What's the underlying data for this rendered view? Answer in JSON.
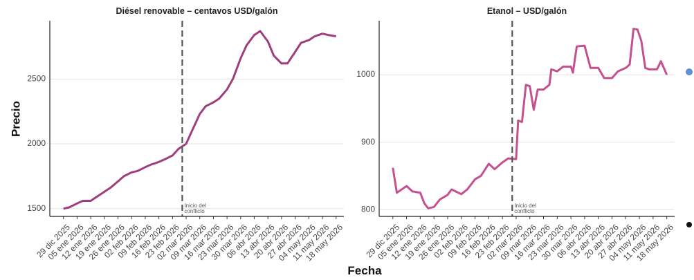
{
  "chart_data": [
    {
      "type": "line",
      "title": "Diésel renovable – centavos USD/galón",
      "ylabel": "Precio",
      "xlabel": "Fecha",
      "x": [
        "2025-12-29",
        "2026-01-01",
        "2026-01-05",
        "2026-01-08",
        "2026-01-12",
        "2026-01-15",
        "2026-01-19",
        "2026-01-22",
        "2026-01-26",
        "2026-01-29",
        "2026-02-02",
        "2026-02-05",
        "2026-02-09",
        "2026-02-12",
        "2026-02-16",
        "2026-02-19",
        "2026-02-23",
        "2026-02-26",
        "2026-03-02",
        "2026-03-05",
        "2026-03-09",
        "2026-03-12",
        "2026-03-16",
        "2026-03-19",
        "2026-03-23",
        "2026-03-26",
        "2026-03-30",
        "2026-04-02",
        "2026-04-06",
        "2026-04-09",
        "2026-04-13",
        "2026-04-16",
        "2026-04-20",
        "2026-04-23",
        "2026-04-27",
        "2026-04-30",
        "2026-05-04",
        "2026-05-07",
        "2026-05-11",
        "2026-05-14",
        "2026-05-18"
      ],
      "series": [
        {
          "name": "Diésel renovable",
          "color": "#9e3f7c",
          "values": [
            1500,
            1510,
            1540,
            1560,
            1560,
            1590,
            1630,
            1660,
            1710,
            1750,
            1780,
            1790,
            1820,
            1840,
            1860,
            1880,
            1910,
            1960,
            2000,
            2100,
            2230,
            2290,
            2320,
            2350,
            2420,
            2500,
            2660,
            2760,
            2840,
            2870,
            2790,
            2680,
            2620,
            2620,
            2710,
            2780,
            2800,
            2830,
            2850,
            2840,
            2830
          ]
        }
      ],
      "xlim": [
        "2025-12-22",
        "2026-05-22"
      ],
      "ylim": [
        1440,
        2950
      ],
      "yticks": [
        1500,
        2000,
        2500
      ],
      "grid": true,
      "xticks": [
        {
          "value": "2025-12-29",
          "label": "29 dic 2025"
        },
        {
          "value": "2026-01-05",
          "label": "05 ene 2026"
        },
        {
          "value": "2026-01-12",
          "label": "12 ene 2026"
        },
        {
          "value": "2026-01-19",
          "label": "19 ene 2026"
        },
        {
          "value": "2026-01-26",
          "label": "26 ene 2026"
        },
        {
          "value": "2026-02-02",
          "label": "02 feb 2026"
        },
        {
          "value": "2026-02-09",
          "label": "09 feb 2026"
        },
        {
          "value": "2026-02-16",
          "label": "16 feb 2026"
        },
        {
          "value": "2026-02-23",
          "label": "23 feb 2026"
        },
        {
          "value": "2026-03-02",
          "label": "02 mar 2026"
        },
        {
          "value": "2026-03-09",
          "label": "09 mar 2026"
        },
        {
          "value": "2026-03-16",
          "label": "16 mar 2026"
        },
        {
          "value": "2026-03-23",
          "label": "23 mar 2026"
        },
        {
          "value": "2026-03-30",
          "label": "30 mar 2026"
        },
        {
          "value": "2026-04-06",
          "label": "06 abr 2026"
        },
        {
          "value": "2026-04-13",
          "label": "13 abr 2026"
        },
        {
          "value": "2026-04-20",
          "label": "20 abr 2026"
        },
        {
          "value": "2026-04-27",
          "label": "27 abr 2026"
        },
        {
          "value": "2026-05-04",
          "label": "04 may 2026"
        },
        {
          "value": "2026-05-11",
          "label": "11 may 2026"
        },
        {
          "value": "2026-05-18",
          "label": "18 may 2026"
        }
      ],
      "annotation": {
        "x": "2026-02-28",
        "text": [
          "Inicio del",
          "conflicto"
        ]
      }
    },
    {
      "type": "line",
      "title": "Etanol – USD/galón",
      "x": [
        "2025-12-29",
        "2025-12-31",
        "2026-01-05",
        "2026-01-08",
        "2026-01-12",
        "2026-01-14",
        "2026-01-16",
        "2026-01-19",
        "2026-01-22",
        "2026-01-26",
        "2026-01-28",
        "2026-02-02",
        "2026-02-05",
        "2026-02-09",
        "2026-02-12",
        "2026-02-16",
        "2026-02-19",
        "2026-02-23",
        "2026-02-26",
        "2026-03-02",
        "2026-03-03",
        "2026-03-05",
        "2026-03-07",
        "2026-03-09",
        "2026-03-11",
        "2026-03-13",
        "2026-03-16",
        "2026-03-19",
        "2026-03-20",
        "2026-03-23",
        "2026-03-26",
        "2026-03-30",
        "2026-03-31",
        "2026-04-02",
        "2026-04-06",
        "2026-04-09",
        "2026-04-13",
        "2026-04-16",
        "2026-04-20",
        "2026-04-23",
        "2026-04-27",
        "2026-04-29",
        "2026-05-01",
        "2026-05-03",
        "2026-05-05",
        "2026-05-07",
        "2026-05-09",
        "2026-05-13",
        "2026-05-15",
        "2026-05-18"
      ],
      "series": [
        {
          "name": "Etanol",
          "color": "#c4508f",
          "values": [
            862,
            825,
            835,
            827,
            825,
            810,
            802,
            804,
            815,
            822,
            830,
            823,
            830,
            845,
            850,
            868,
            860,
            870,
            876,
            875,
            932,
            930,
            985,
            983,
            948,
            978,
            978,
            985,
            1008,
            1005,
            1012,
            1012,
            1003,
            1042,
            1043,
            1010,
            1010,
            995,
            995,
            1005,
            1010,
            1015,
            1068,
            1067,
            1050,
            1010,
            1008,
            1008,
            1020,
            1000
          ]
        }
      ],
      "xlim": [
        "2025-12-22",
        "2026-05-22"
      ],
      "ylim": [
        790,
        1080
      ],
      "yticks": [
        800,
        900,
        1000
      ],
      "grid": true,
      "xticks": [
        {
          "value": "2025-12-29",
          "label": "29 dic 2025"
        },
        {
          "value": "2026-01-05",
          "label": "05 ene 2026"
        },
        {
          "value": "2026-01-12",
          "label": "12 ene 2026"
        },
        {
          "value": "2026-01-19",
          "label": "19 ene 2026"
        },
        {
          "value": "2026-01-26",
          "label": "26 ene 2026"
        },
        {
          "value": "2026-02-02",
          "label": "02 feb 2026"
        },
        {
          "value": "2026-02-09",
          "label": "09 feb 2026"
        },
        {
          "value": "2026-02-16",
          "label": "16 feb 2026"
        },
        {
          "value": "2026-02-23",
          "label": "23 feb 2026"
        },
        {
          "value": "2026-03-02",
          "label": "02 mar 2026"
        },
        {
          "value": "2026-03-09",
          "label": "09 mar 2026"
        },
        {
          "value": "2026-03-16",
          "label": "16 mar 2026"
        },
        {
          "value": "2026-03-23",
          "label": "23 mar 2026"
        },
        {
          "value": "2026-03-30",
          "label": "30 mar 2026"
        },
        {
          "value": "2026-04-06",
          "label": "06 abr 2026"
        },
        {
          "value": "2026-04-13",
          "label": "13 abr 2026"
        },
        {
          "value": "2026-04-20",
          "label": "20 abr 2026"
        },
        {
          "value": "2026-04-27",
          "label": "27 abr 2026"
        },
        {
          "value": "2026-05-04",
          "label": "04 may 2026"
        },
        {
          "value": "2026-05-11",
          "label": "11 may 2026"
        },
        {
          "value": "2026-05-18",
          "label": "18 may 2026"
        }
      ],
      "annotation": {
        "x": "2026-02-28",
        "text": [
          "Inicio del",
          "conflicto"
        ]
      }
    }
  ]
}
